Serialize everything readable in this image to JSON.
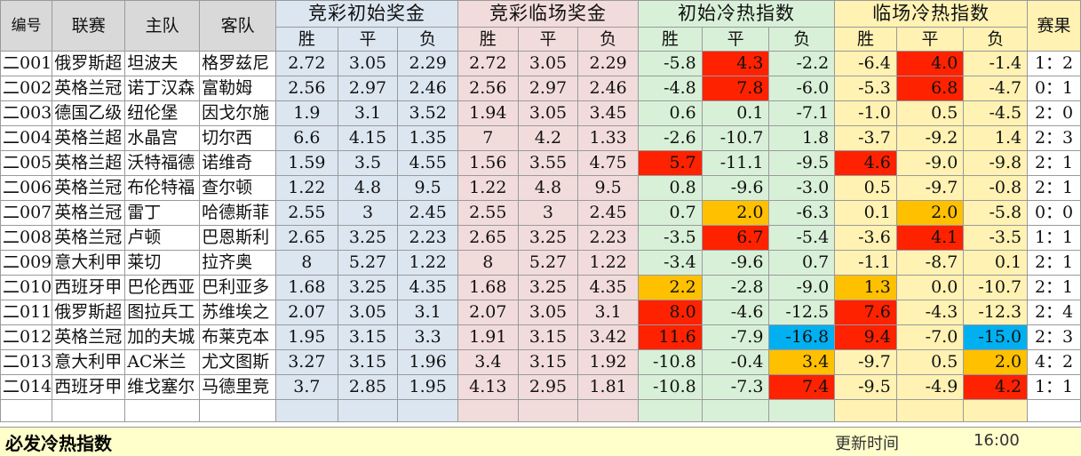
{
  "headers": {
    "id": "编号",
    "league": "联赛",
    "home": "主队",
    "away": "客队",
    "initial_odds": "竞彩初始奖金",
    "live_odds": "竞彩临场奖金",
    "initial_index": "初始冷热指数",
    "live_index": "临场冷热指数",
    "result": "赛果",
    "win": "胜",
    "draw": "平",
    "lose": "负"
  },
  "rows": [
    {
      "id": "二001",
      "league": "俄罗斯超",
      "home": "坦波夫",
      "away": "格罗兹尼",
      "o": [
        "2.72",
        "3.05",
        "2.29"
      ],
      "l": [
        "2.72",
        "3.05",
        "2.29"
      ],
      "i": [
        "-5.8",
        "4.3",
        "-2.2"
      ],
      "h": [
        "-6.4",
        "4.0",
        "-1.4"
      ],
      "res": "1：2",
      "ic": [
        "",
        "cR",
        ""
      ],
      "hc": [
        "",
        "cR",
        ""
      ]
    },
    {
      "id": "二002",
      "league": "英格兰冠",
      "home": "诺丁汉森",
      "away": "富勒姆",
      "o": [
        "2.56",
        "2.97",
        "2.46"
      ],
      "l": [
        "2.56",
        "2.97",
        "2.46"
      ],
      "i": [
        "-4.8",
        "7.8",
        "-6.0"
      ],
      "h": [
        "-5.3",
        "6.8",
        "-4.7"
      ],
      "res": "0：1",
      "ic": [
        "",
        "cR",
        ""
      ],
      "hc": [
        "",
        "cR",
        ""
      ]
    },
    {
      "id": "二003",
      "league": "德国乙级",
      "home": "纽伦堡",
      "away": "因戈尔施",
      "o": [
        "1.9",
        "3.1",
        "3.52"
      ],
      "l": [
        "1.94",
        "3.05",
        "3.45"
      ],
      "i": [
        "0.6",
        "0.1",
        "-7.1"
      ],
      "h": [
        "-1.0",
        "0.5",
        "-4.5"
      ],
      "res": "2：0",
      "ic": [
        "",
        "",
        ""
      ],
      "hc": [
        "",
        "",
        ""
      ]
    },
    {
      "id": "二004",
      "league": "英格兰超",
      "home": "水晶宫",
      "away": "切尔西",
      "o": [
        "6.6",
        "4.15",
        "1.35"
      ],
      "l": [
        "7",
        "4.2",
        "1.33"
      ],
      "i": [
        "-2.6",
        "-10.7",
        "1.8"
      ],
      "h": [
        "-3.7",
        "-9.2",
        "1.4"
      ],
      "res": "2：3",
      "ic": [
        "",
        "",
        ""
      ],
      "hc": [
        "",
        "",
        ""
      ]
    },
    {
      "id": "二005",
      "league": "英格兰超",
      "home": "沃特福德",
      "away": "诺维奇",
      "o": [
        "1.59",
        "3.5",
        "4.55"
      ],
      "l": [
        "1.56",
        "3.55",
        "4.75"
      ],
      "i": [
        "5.7",
        "-11.1",
        "-9.5"
      ],
      "h": [
        "4.6",
        "-9.0",
        "-9.8"
      ],
      "res": "2：1",
      "ic": [
        "cR",
        "",
        ""
      ],
      "hc": [
        "cR",
        "",
        ""
      ]
    },
    {
      "id": "二006",
      "league": "英格兰冠",
      "home": "布伦特福",
      "away": "查尔顿",
      "o": [
        "1.22",
        "4.8",
        "9.5"
      ],
      "l": [
        "1.22",
        "4.8",
        "9.5"
      ],
      "i": [
        "0.8",
        "-9.6",
        "-3.0"
      ],
      "h": [
        "0.5",
        "-9.7",
        "-0.8"
      ],
      "res": "2：1",
      "ic": [
        "",
        "",
        ""
      ],
      "hc": [
        "",
        "",
        ""
      ]
    },
    {
      "id": "二007",
      "league": "英格兰冠",
      "home": "雷丁",
      "away": "哈德斯菲",
      "o": [
        "2.55",
        "3",
        "2.45"
      ],
      "l": [
        "2.55",
        "3",
        "2.45"
      ],
      "i": [
        "0.7",
        "2.0",
        "-6.3"
      ],
      "h": [
        "0.1",
        "2.0",
        "-5.8"
      ],
      "res": "0：0",
      "ic": [
        "",
        "cO",
        ""
      ],
      "hc": [
        "",
        "cO",
        ""
      ]
    },
    {
      "id": "二008",
      "league": "英格兰冠",
      "home": "卢顿",
      "away": "巴恩斯利",
      "o": [
        "2.65",
        "3.25",
        "2.23"
      ],
      "l": [
        "2.65",
        "3.25",
        "2.23"
      ],
      "i": [
        "-3.5",
        "6.7",
        "-5.4"
      ],
      "h": [
        "-3.6",
        "4.1",
        "-3.5"
      ],
      "res": "1：1",
      "ic": [
        "",
        "cR",
        ""
      ],
      "hc": [
        "",
        "cR",
        ""
      ]
    },
    {
      "id": "二009",
      "league": "意大利甲",
      "home": "莱切",
      "away": "拉齐奥",
      "o": [
        "8",
        "5.27",
        "1.22"
      ],
      "l": [
        "8",
        "5.27",
        "1.22"
      ],
      "i": [
        "-3.4",
        "-9.6",
        "0.7"
      ],
      "h": [
        "-1.1",
        "-8.7",
        "0.1"
      ],
      "res": "2：1",
      "ic": [
        "",
        "",
        ""
      ],
      "hc": [
        "",
        "",
        ""
      ]
    },
    {
      "id": "二010",
      "league": "西班牙甲",
      "home": "巴伦西亚",
      "away": "巴利亚多",
      "o": [
        "1.68",
        "3.25",
        "4.35"
      ],
      "l": [
        "1.68",
        "3.25",
        "4.35"
      ],
      "i": [
        "2.2",
        "-2.8",
        "-9.0"
      ],
      "h": [
        "1.3",
        "0.0",
        "-10.7"
      ],
      "res": "2：1",
      "ic": [
        "cO",
        "",
        ""
      ],
      "hc": [
        "cO",
        "",
        ""
      ]
    },
    {
      "id": "二011",
      "league": "俄罗斯超",
      "home": "图拉兵工",
      "away": "苏维埃之",
      "o": [
        "2.07",
        "3.05",
        "3.1"
      ],
      "l": [
        "2.07",
        "3.05",
        "3.1"
      ],
      "i": [
        "8.0",
        "-4.6",
        "-12.5"
      ],
      "h": [
        "7.6",
        "-4.3",
        "-12.3"
      ],
      "res": "2：4",
      "ic": [
        "cR",
        "",
        ""
      ],
      "hc": [
        "cR",
        "",
        ""
      ]
    },
    {
      "id": "二012",
      "league": "英格兰冠",
      "home": "加的夫城",
      "away": "布莱克本",
      "o": [
        "1.95",
        "3.15",
        "3.3"
      ],
      "l": [
        "1.91",
        "3.15",
        "3.42"
      ],
      "i": [
        "11.6",
        "-7.9",
        "-16.8"
      ],
      "h": [
        "9.4",
        "-7.0",
        "-15.0"
      ],
      "res": "2：3",
      "ic": [
        "cR",
        "",
        "cB"
      ],
      "hc": [
        "cR",
        "",
        "cB"
      ]
    },
    {
      "id": "二013",
      "league": "意大利甲",
      "home": "AC米兰",
      "away": "尤文图斯",
      "o": [
        "3.27",
        "3.15",
        "1.96"
      ],
      "l": [
        "3.4",
        "3.15",
        "1.92"
      ],
      "i": [
        "-10.8",
        "-0.4",
        "3.4"
      ],
      "h": [
        "-9.7",
        "0.5",
        "2.0"
      ],
      "res": "4：2",
      "ic": [
        "",
        "",
        "cO"
      ],
      "hc": [
        "",
        "",
        "cO"
      ]
    },
    {
      "id": "二014",
      "league": "西班牙甲",
      "home": "维戈塞尔",
      "away": "马德里竞",
      "o": [
        "3.7",
        "2.85",
        "1.95"
      ],
      "l": [
        "4.13",
        "2.95",
        "1.81"
      ],
      "i": [
        "-10.8",
        "-7.3",
        "7.4"
      ],
      "h": [
        "-9.5",
        "-4.9",
        "4.2"
      ],
      "res": "1：1",
      "ic": [
        "",
        "",
        "cR"
      ],
      "hc": [
        "",
        "",
        "cR"
      ]
    }
  ],
  "footer": {
    "title": "必发冷热指数",
    "update_label": "更新时间",
    "update_time": "16:00"
  }
}
